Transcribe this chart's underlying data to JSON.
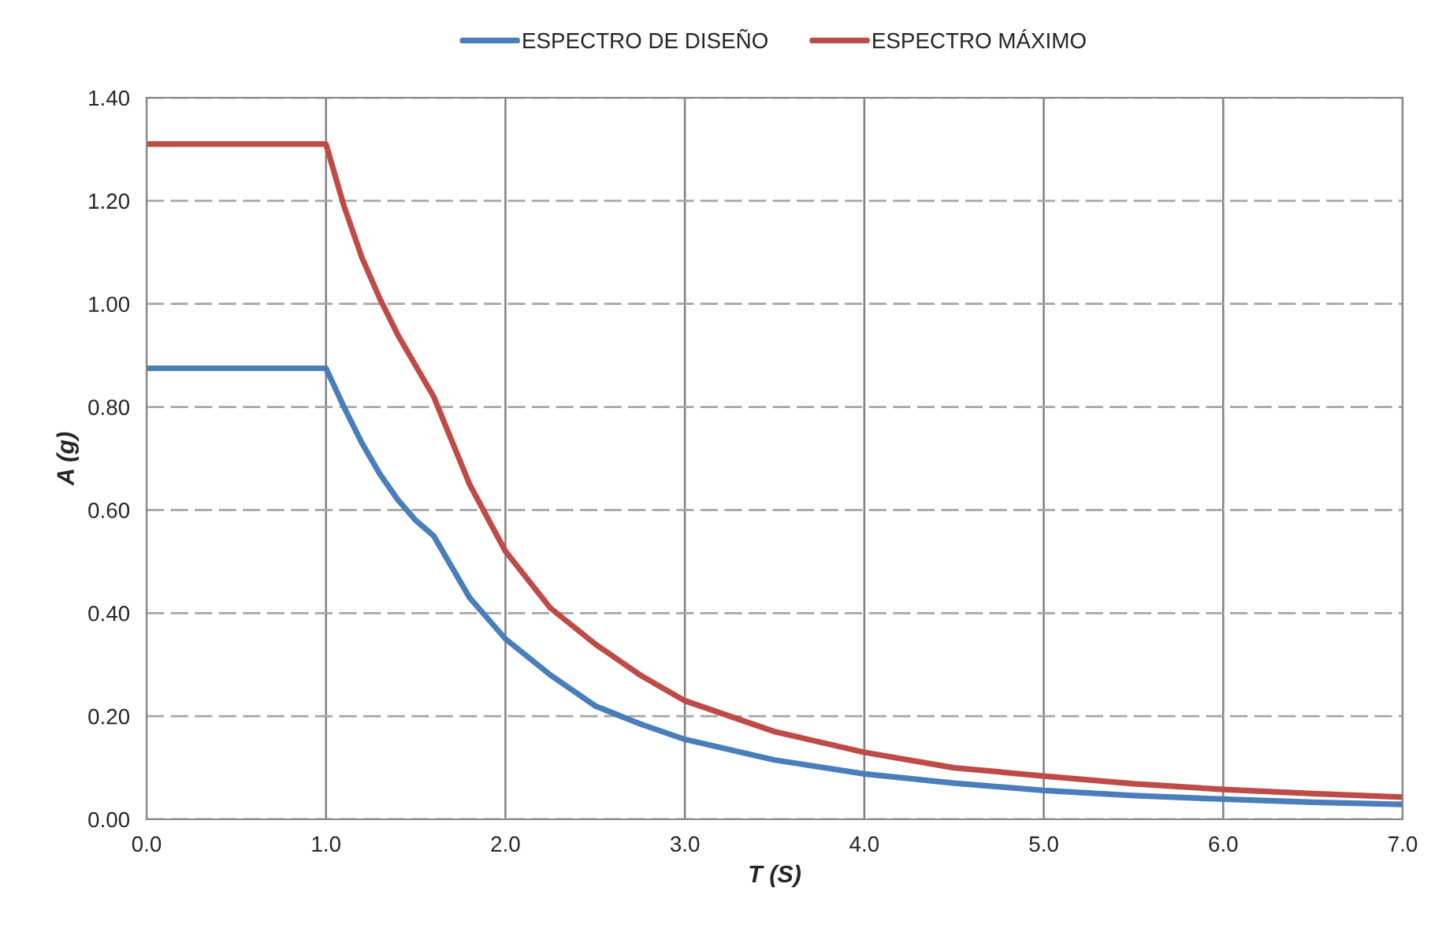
{
  "chart_data": {
    "type": "line",
    "xlabel": "T (S)",
    "ylabel": "A (g)",
    "x": [
      0,
      1.0,
      1.1,
      1.2,
      1.3,
      1.4,
      1.5,
      1.6,
      1.8,
      2.0,
      2.25,
      2.5,
      2.75,
      3.0,
      3.5,
      4.0,
      4.5,
      5.0,
      5.5,
      6.0,
      6.5,
      7.0
    ],
    "series": [
      {
        "name": "ESPECTRO DE DISEÑO",
        "color": "#4a7ebb",
        "values": [
          0.875,
          0.875,
          0.8,
          0.73,
          0.67,
          0.62,
          0.58,
          0.55,
          0.43,
          0.35,
          0.28,
          0.22,
          0.185,
          0.155,
          0.115,
          0.088,
          0.07,
          0.056,
          0.046,
          0.039,
          0.033,
          0.029
        ]
      },
      {
        "name": "ESPECTRO MÁXIMO",
        "color": "#be4b48",
        "values": [
          1.31,
          1.31,
          1.19,
          1.09,
          1.01,
          0.94,
          0.88,
          0.82,
          0.65,
          0.52,
          0.41,
          0.34,
          0.28,
          0.23,
          0.17,
          0.13,
          0.1,
          0.084,
          0.069,
          0.058,
          0.05,
          0.043
        ]
      }
    ],
    "xlim": [
      0,
      7
    ],
    "xticks": [
      {
        "value": 0,
        "label": "0.0"
      },
      {
        "value": 1,
        "label": "1.0"
      },
      {
        "value": 2,
        "label": "2.0"
      },
      {
        "value": 3,
        "label": "3.0"
      },
      {
        "value": 4,
        "label": "4.0"
      },
      {
        "value": 5,
        "label": "5.0"
      },
      {
        "value": 6,
        "label": "6.0"
      },
      {
        "value": 7,
        "label": "7.0"
      }
    ],
    "ylim": [
      0,
      1.4
    ],
    "yticks": [
      {
        "value": 0,
        "label": "0.00"
      },
      {
        "value": 0.2,
        "label": "0.20"
      },
      {
        "value": 0.4,
        "label": "0.40"
      },
      {
        "value": 0.6,
        "label": "0.60"
      },
      {
        "value": 0.8,
        "label": "0.80"
      },
      {
        "value": 1.0,
        "label": "1.00"
      },
      {
        "value": 1.2,
        "label": "1.20"
      },
      {
        "value": 1.4,
        "label": "1.40"
      }
    ],
    "grid": true,
    "legend": "top",
    "marker": "none",
    "line_style": "solid"
  }
}
